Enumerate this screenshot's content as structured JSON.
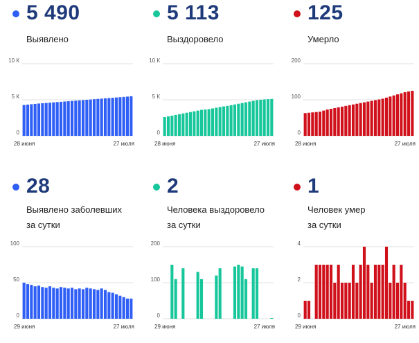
{
  "panels": [
    {
      "id": "p1",
      "number": "5 490",
      "label": [
        "Выявлено"
      ],
      "color": "#2f5ff5"
    },
    {
      "id": "p2",
      "number": "5 113",
      "label": [
        "Выздоровело"
      ],
      "color": "#17c79b"
    },
    {
      "id": "p3",
      "number": "125",
      "label": [
        "Умерло"
      ],
      "color": "#d0111b"
    },
    {
      "id": "p4",
      "number": "28",
      "label": [
        "Выявлено заболевших",
        "за сутки"
      ],
      "color": "#2f5ff5"
    },
    {
      "id": "p5",
      "number": "2",
      "label": [
        "Человека выздоровело",
        "за сутки"
      ],
      "color": "#17c79b"
    },
    {
      "id": "p6",
      "number": "1",
      "label": [
        "Человек умер",
        "за сутки"
      ],
      "color": "#d0111b"
    }
  ],
  "chart_data": [
    {
      "type": "bar",
      "series": [
        {
          "values": [
            4280,
            4330,
            4380,
            4430,
            4480,
            4520,
            4560,
            4600,
            4640,
            4680,
            4720,
            4760,
            4800,
            4840,
            4880,
            4920,
            4960,
            5000,
            5040,
            5080,
            5120,
            5160,
            5200,
            5240,
            5280,
            5320,
            5360,
            5400,
            5440,
            5490
          ]
        }
      ],
      "x_labels": [
        "28 июня",
        "27 июля"
      ],
      "yticks": [
        "0",
        "5 К",
        "10 К"
      ],
      "ylim": [
        0,
        10000
      ],
      "color": "#2f5ff5"
    },
    {
      "type": "bar",
      "series": [
        {
          "values": [
            2600,
            2700,
            2800,
            2900,
            3000,
            3100,
            3200,
            3300,
            3400,
            3500,
            3600,
            3650,
            3700,
            3800,
            3900,
            4000,
            4080,
            4150,
            4250,
            4350,
            4450,
            4550,
            4650,
            4750,
            4850,
            4950,
            5000,
            5050,
            5090,
            5113
          ]
        }
      ],
      "x_labels": [
        "28 июня",
        "27 июля"
      ],
      "yticks": [
        "0",
        "5 К",
        "10 К"
      ],
      "ylim": [
        0,
        10000
      ],
      "color": "#17c79b"
    },
    {
      "type": "bar",
      "series": [
        {
          "values": [
            63,
            64,
            65,
            66,
            67,
            70,
            73,
            75,
            77,
            79,
            81,
            83,
            85,
            87,
            89,
            91,
            93,
            95,
            97,
            99,
            101,
            103,
            106,
            109,
            112,
            115,
            118,
            121,
            123,
            125
          ]
        }
      ],
      "x_labels": [
        "28 июня",
        "27 июля"
      ],
      "yticks": [
        "0",
        "100",
        "200"
      ],
      "ylim": [
        0,
        200
      ],
      "color": "#d0111b"
    },
    {
      "type": "bar",
      "series": [
        {
          "values": [
            50,
            48,
            47,
            45,
            46,
            44,
            43,
            45,
            43,
            42,
            44,
            43,
            42,
            43,
            41,
            42,
            41,
            43,
            42,
            41,
            40,
            42,
            40,
            37,
            36,
            34,
            32,
            30,
            28,
            28
          ]
        }
      ],
      "x_labels": [
        "29 июня",
        "27 июля"
      ],
      "yticks": [
        "0",
        "50",
        "100"
      ],
      "ylim": [
        0,
        100
      ],
      "color": "#2f5ff5"
    },
    {
      "type": "bar",
      "series": [
        {
          "values": [
            0,
            0,
            150,
            110,
            0,
            140,
            0,
            0,
            0,
            130,
            110,
            0,
            0,
            0,
            120,
            140,
            0,
            0,
            0,
            145,
            150,
            145,
            110,
            0,
            140,
            140,
            0,
            0,
            0,
            2
          ]
        }
      ],
      "x_labels": [
        "29 июня",
        "27 июля"
      ],
      "yticks": [
        "0",
        "100",
        "200"
      ],
      "ylim": [
        0,
        200
      ],
      "color": "#17c79b"
    },
    {
      "type": "bar",
      "series": [
        {
          "values": [
            1,
            1,
            0,
            3,
            3,
            3,
            3,
            3,
            2,
            3,
            2,
            2,
            2,
            3,
            2,
            3,
            4,
            3,
            2,
            3,
            3,
            3,
            4,
            2,
            3,
            2,
            3,
            2,
            1,
            1
          ]
        }
      ],
      "x_labels": [
        "29 июня",
        "27 июля"
      ],
      "yticks": [
        "0",
        "2",
        "4"
      ],
      "ylim": [
        0,
        4
      ],
      "color": "#d0111b"
    }
  ]
}
